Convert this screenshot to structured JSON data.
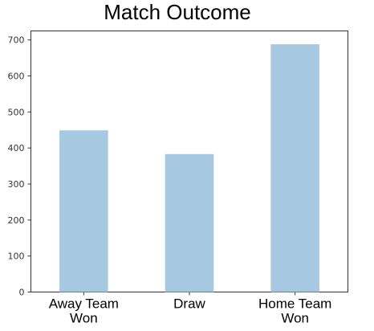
{
  "chart_data": {
    "type": "bar",
    "title": "Match Outcome",
    "xlabel": "",
    "ylabel": "",
    "categories": [
      [
        "Away Team",
        "Won"
      ],
      [
        "Draw"
      ],
      [
        "Home Team",
        "Won"
      ]
    ],
    "values": [
      449,
      383,
      688
    ],
    "ylim": [
      0,
      725
    ],
    "yticks": [
      0,
      100,
      200,
      300,
      400,
      500,
      600,
      700
    ],
    "bar_color": "#a6c8e0",
    "grid": false,
    "legend": "none"
  }
}
